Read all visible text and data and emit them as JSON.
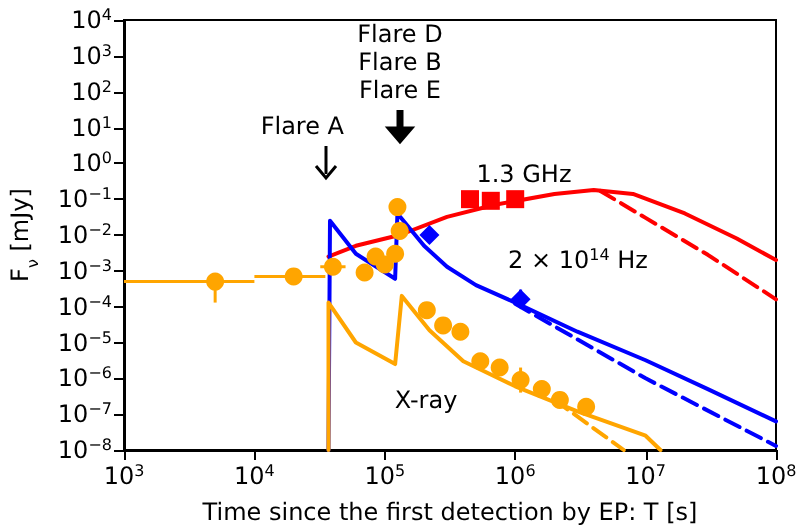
{
  "chart_data": {
    "type": "line",
    "log": "xy",
    "xlabel": "Time since the first detection by EP: T [s]",
    "ylabel": "F$_{ν}$ [mJy]",
    "xlim": [
      1000,
      100000000
    ],
    "ylim": [
      1e-08,
      10000
    ],
    "xticks": [
      {
        "value": 1000,
        "label": "10$^{3}$"
      },
      {
        "value": 10000,
        "label": "10$^{4}$"
      },
      {
        "value": 100000,
        "label": "10$^{5}$"
      },
      {
        "value": 1000000,
        "label": "10$^{6}$"
      },
      {
        "value": 10000000,
        "label": "10$^{7}$"
      },
      {
        "value": 100000000,
        "label": "10$^{8}$"
      }
    ],
    "yticks": [
      {
        "value": 1e-08,
        "label": "10$^{−8}$"
      },
      {
        "value": 1e-07,
        "label": "10$^{−7}$"
      },
      {
        "value": 1e-06,
        "label": "10$^{−6}$"
      },
      {
        "value": 1e-05,
        "label": "10$^{−5}$"
      },
      {
        "value": 0.0001,
        "label": "10$^{−4}$"
      },
      {
        "value": 0.001,
        "label": "10$^{−3}$"
      },
      {
        "value": 0.01,
        "label": "10$^{−2}$"
      },
      {
        "value": 0.1,
        "label": "10$^{−1}$"
      },
      {
        "value": 1,
        "label": "10$^{0}$"
      },
      {
        "value": 10,
        "label": "10$^{1}$"
      },
      {
        "value": 100,
        "label": "10$^{2}$"
      },
      {
        "value": 1000,
        "label": "10$^{3}$"
      },
      {
        "value": 10000,
        "label": "10$^{4}$"
      }
    ],
    "series": [
      {
        "color": "#ff0000",
        "marker": "none",
        "line_style": "solid",
        "x": [
          37000,
          60000,
          130000,
          300000,
          700000,
          2000000,
          4000000,
          8000000,
          20000000,
          50000000,
          100000000
        ],
        "values": [
          0.0025,
          0.005,
          0.01,
          0.032,
          0.07,
          0.14,
          0.18,
          0.14,
          0.04,
          0.008,
          0.002
        ]
      },
      {
        "color": "#ff0000",
        "marker": "none",
        "line_style": "dashed",
        "x": [
          4500000,
          10000000,
          30000000,
          100000000
        ],
        "values": [
          0.17,
          0.03,
          0.0028,
          0.00016
        ]
      },
      {
        "color": "#0000ff",
        "marker": "none",
        "line_style": "solid",
        "x": [
          37000,
          38000,
          60000,
          120000,
          125000,
          200000,
          300000,
          500000,
          1000000,
          3000000,
          10000000,
          30000000,
          100000000
        ],
        "values": [
          1e-08,
          0.025,
          0.003,
          0.0006,
          0.04,
          0.005,
          0.0013,
          0.0004,
          0.00013,
          2e-05,
          3.2e-06,
          5e-07,
          6.3e-08
        ]
      },
      {
        "color": "#0000ff",
        "marker": "none",
        "line_style": "dashed",
        "x": [
          1000000,
          10000000,
          100000000
        ],
        "values": [
          0.00012,
          1e-06,
          1.3e-08
        ]
      },
      {
        "color": "#ffa500",
        "marker": "none",
        "line_style": "solid",
        "x": [
          37000,
          37000,
          60000,
          120000,
          135000,
          220000,
          400000,
          1000000,
          3000000,
          10000000,
          13000000
        ],
        "values": [
          1e-08,
          0.00013,
          1e-05,
          2.5e-06,
          0.0002,
          2.2e-05,
          3e-06,
          6e-07,
          1.2e-07,
          2.5e-08,
          1e-08
        ]
      },
      {
        "color": "#ffa500",
        "marker": "none",
        "line_style": "dashed",
        "x": [
          2000000,
          6800000
        ],
        "values": [
          2.5e-07,
          1e-08
        ]
      },
      {
        "type": "scatter",
        "color": "#ff0000",
        "marker": "square",
        "x": [
          450000,
          650000,
          1000000
        ],
        "values": [
          0.1,
          0.09,
          0.1
        ]
      },
      {
        "type": "scatter",
        "color": "#0000ff",
        "marker": "diamond",
        "x": [
          220000,
          1100000
        ],
        "values": [
          0.01,
          0.00016
        ],
        "errors": [
          null,
          [
            0.0001,
            0.0003
          ]
        ]
      },
      {
        "type": "scatter",
        "color": "#ffa500",
        "marker": "circle",
        "x": [
          5000,
          20000,
          40000,
          70000,
          85000,
          100000,
          120000,
          125000,
          130000,
          210000,
          280000,
          380000,
          540000,
          760000,
          1100000,
          1600000,
          2200000,
          3500000
        ],
        "values": [
          0.0005,
          0.0007,
          0.0013,
          0.0009,
          0.0025,
          0.0015,
          0.003,
          0.06,
          0.013,
          8e-05,
          3e-05,
          2e-05,
          3e-06,
          2e-06,
          9e-07,
          5e-07,
          2.5e-07,
          1.6e-07
        ],
        "errors": [
          [
            0.00013,
            0.0008
          ],
          null,
          null,
          null,
          [
            0.0015,
            0.004
          ],
          null,
          null,
          null,
          null,
          null,
          null,
          null,
          null,
          null,
          [
            4e-07,
            2e-06
          ],
          null,
          null,
          null
        ],
        "xerrors": [
          [
            1000,
            10000
          ],
          [
            10000,
            35000
          ],
          [
            32000,
            50000
          ],
          null,
          null,
          null,
          null,
          null,
          null,
          null,
          null,
          null,
          null,
          null,
          null,
          null,
          null,
          null
        ]
      }
    ],
    "annotations": [
      "Flare A",
      "Flare D\nFlare B\nFlare E",
      "1.3 GHz",
      "2 × 10$^{14}$ Hz",
      "X-ray"
    ]
  }
}
